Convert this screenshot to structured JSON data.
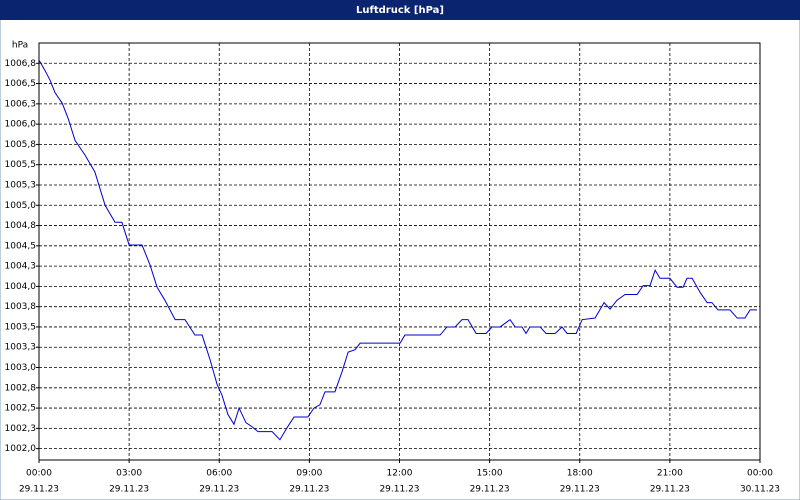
{
  "chart_data": {
    "type": "line",
    "title": "Luftdruck [hPa]",
    "y_label": "hPa",
    "xlim": [
      0,
      24
    ],
    "ylim": [
      1001.86,
      1007.0
    ],
    "xticks": [
      {
        "value": 0,
        "label": "00:00"
      },
      {
        "value": 3,
        "label": "03:00"
      },
      {
        "value": 6,
        "label": "06:00"
      },
      {
        "value": 9,
        "label": "09:00"
      },
      {
        "value": 12,
        "label": "12:00"
      },
      {
        "value": 15,
        "label": "15:00"
      },
      {
        "value": 18,
        "label": "18:00"
      },
      {
        "value": 21,
        "label": "21:00"
      },
      {
        "value": 24,
        "label": "00:00"
      }
    ],
    "xtick_dates": [
      "29.11.23",
      "29.11.23",
      "29.11.23",
      "29.11.23",
      "29.11.23",
      "29.11.23",
      "29.11.23",
      "29.11.23",
      "30.11.23"
    ],
    "yticks": [
      {
        "value": 1006.75,
        "label": "1006,8"
      },
      {
        "value": 1006.5,
        "label": "1006,5"
      },
      {
        "value": 1006.25,
        "label": "1006,3"
      },
      {
        "value": 1006.0,
        "label": "1006,0"
      },
      {
        "value": 1005.75,
        "label": "1005,8"
      },
      {
        "value": 1005.5,
        "label": "1005,5"
      },
      {
        "value": 1005.25,
        "label": "1005,3"
      },
      {
        "value": 1005.0,
        "label": "1005,0"
      },
      {
        "value": 1004.75,
        "label": "1004,8"
      },
      {
        "value": 1004.5,
        "label": "1004,5"
      },
      {
        "value": 1004.25,
        "label": "1004,3"
      },
      {
        "value": 1004.0,
        "label": "1004,0"
      },
      {
        "value": 1003.75,
        "label": "1003,8"
      },
      {
        "value": 1003.5,
        "label": "1003,5"
      },
      {
        "value": 1003.25,
        "label": "1003,3"
      },
      {
        "value": 1003.0,
        "label": "1003,0"
      },
      {
        "value": 1002.75,
        "label": "1002,8"
      },
      {
        "value": 1002.5,
        "label": "1002,5"
      },
      {
        "value": 1002.25,
        "label": "1002,3"
      },
      {
        "value": 1002.0,
        "label": "1002,0"
      }
    ],
    "grid": true,
    "series": [
      {
        "color": "#0000cc",
        "x": [
          0.0,
          0.2,
          0.37,
          0.53,
          0.77,
          0.97,
          1.2,
          1.53,
          1.86,
          2.2,
          2.53,
          2.76,
          3.0,
          3.43,
          3.7,
          3.93,
          4.19,
          4.53,
          4.86,
          5.19,
          5.43,
          5.69,
          5.93,
          6.09,
          6.29,
          6.49,
          6.66,
          6.89,
          7.09,
          7.29,
          7.76,
          8.02,
          8.26,
          8.49,
          8.95,
          9.15,
          9.35,
          9.52,
          9.85,
          10.09,
          10.29,
          10.52,
          10.69,
          12.02,
          12.18,
          13.35,
          13.58,
          13.85,
          14.08,
          14.28,
          14.55,
          14.88,
          15.08,
          15.35,
          15.68,
          15.85,
          16.08,
          16.21,
          16.34,
          16.68,
          16.88,
          17.18,
          17.41,
          17.58,
          17.88,
          18.08,
          18.51,
          18.81,
          19.01,
          19.24,
          19.51,
          19.91,
          20.11,
          20.34,
          20.51,
          20.67,
          21.0,
          21.24,
          21.44,
          21.57,
          21.74,
          22.0,
          22.24,
          22.4,
          22.6,
          23.0,
          23.24,
          23.5,
          23.67,
          23.9
        ],
        "values": [
          1006.79,
          1006.66,
          1006.54,
          1006.39,
          1006.26,
          1006.07,
          1005.8,
          1005.62,
          1005.41,
          1005.0,
          1004.79,
          1004.79,
          1004.51,
          1004.51,
          1004.26,
          1003.99,
          1003.83,
          1003.59,
          1003.59,
          1003.4,
          1003.4,
          1003.1,
          1002.79,
          1002.66,
          1002.42,
          1002.3,
          1002.5,
          1002.32,
          1002.27,
          1002.21,
          1002.21,
          1002.11,
          1002.26,
          1002.39,
          1002.39,
          1002.5,
          1002.54,
          1002.7,
          1002.7,
          1002.95,
          1003.19,
          1003.22,
          1003.3,
          1003.3,
          1003.4,
          1003.4,
          1003.5,
          1003.5,
          1003.59,
          1003.59,
          1003.42,
          1003.42,
          1003.5,
          1003.5,
          1003.59,
          1003.5,
          1003.5,
          1003.42,
          1003.5,
          1003.5,
          1003.42,
          1003.42,
          1003.5,
          1003.42,
          1003.42,
          1003.59,
          1003.61,
          1003.8,
          1003.72,
          1003.83,
          1003.9,
          1003.9,
          1004.01,
          1004.01,
          1004.2,
          1004.1,
          1004.1,
          1003.99,
          1003.99,
          1004.1,
          1004.1,
          1003.93,
          1003.8,
          1003.8,
          1003.71,
          1003.71,
          1003.61,
          1003.61,
          1003.71,
          1003.71
        ]
      }
    ]
  }
}
